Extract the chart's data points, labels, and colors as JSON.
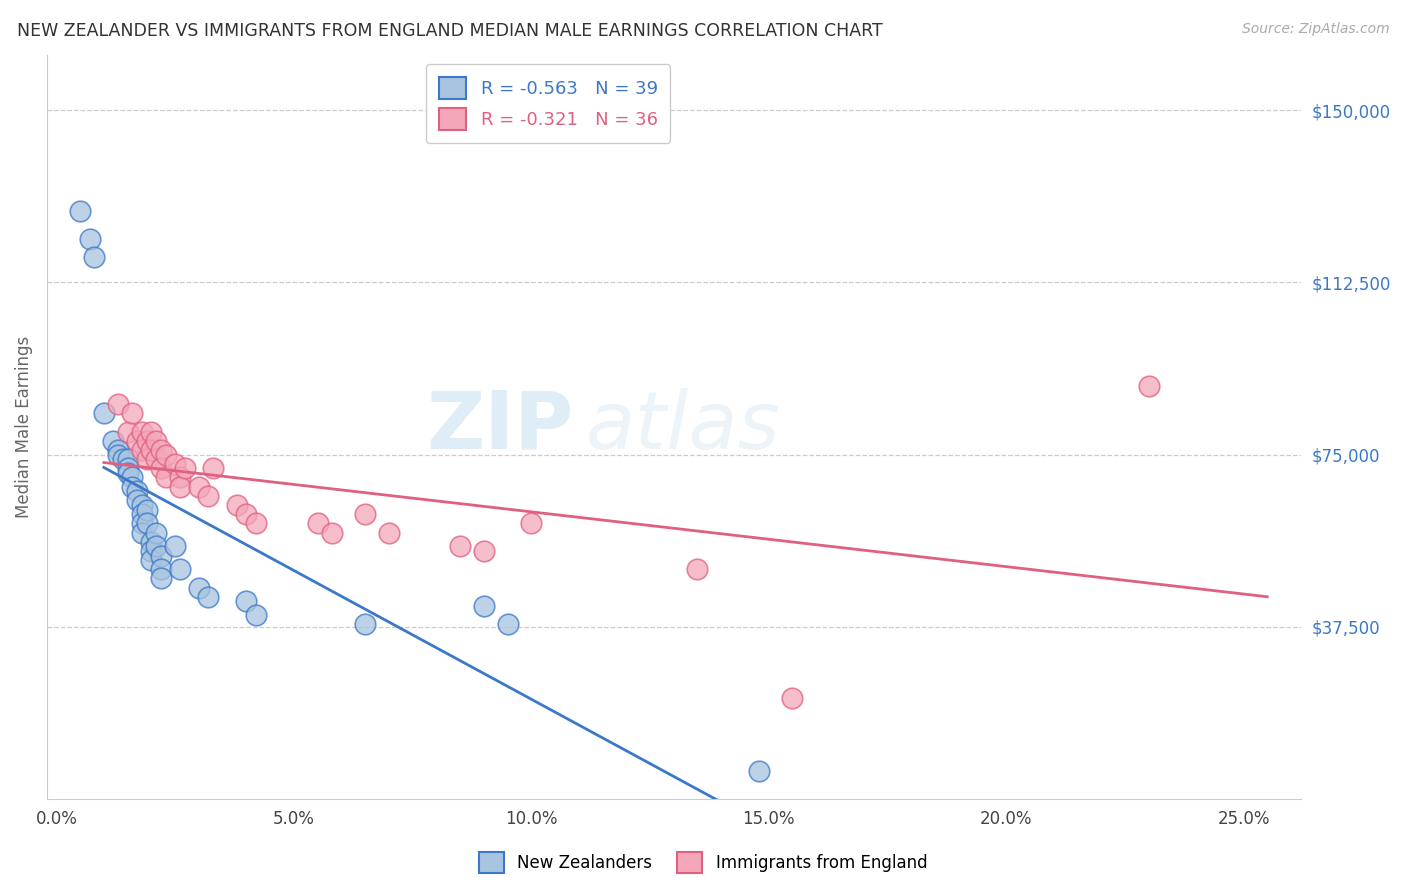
{
  "title": "NEW ZEALANDER VS IMMIGRANTS FROM ENGLAND MEDIAN MALE EARNINGS CORRELATION CHART",
  "source": "Source: ZipAtlas.com",
  "ylabel": "Median Male Earnings",
  "xlabel_ticks": [
    "0.0%",
    "5.0%",
    "10.0%",
    "15.0%",
    "20.0%",
    "25.0%"
  ],
  "xlabel_vals": [
    0.0,
    0.05,
    0.1,
    0.15,
    0.2,
    0.25
  ],
  "ytick_labels": [
    "$37,500",
    "$75,000",
    "$112,500",
    "$150,000"
  ],
  "ytick_vals": [
    37500,
    75000,
    112500,
    150000
  ],
  "ylim": [
    0,
    162000
  ],
  "xlim": [
    -0.002,
    0.262
  ],
  "blue_R": -0.563,
  "blue_N": 39,
  "pink_R": -0.321,
  "pink_N": 36,
  "blue_color": "#a8c4e0",
  "pink_color": "#f4a7b9",
  "blue_line_color": "#3c78c8",
  "pink_line_color": "#e06080",
  "legend_label_blue": "New Zealanders",
  "legend_label_pink": "Immigrants from England",
  "watermark_zip": "ZIP",
  "watermark_atlas": "atlas",
  "blue_x": [
    0.005,
    0.007,
    0.008,
    0.01,
    0.012,
    0.013,
    0.013,
    0.014,
    0.015,
    0.015,
    0.015,
    0.016,
    0.016,
    0.017,
    0.017,
    0.018,
    0.018,
    0.018,
    0.018,
    0.019,
    0.019,
    0.02,
    0.02,
    0.02,
    0.021,
    0.021,
    0.022,
    0.022,
    0.022,
    0.025,
    0.026,
    0.03,
    0.032,
    0.04,
    0.042,
    0.065,
    0.09,
    0.095,
    0.148
  ],
  "blue_y": [
    128000,
    122000,
    118000,
    84000,
    78000,
    76000,
    75000,
    74000,
    74000,
    72000,
    71000,
    70000,
    68000,
    67000,
    65000,
    64000,
    62000,
    60000,
    58000,
    63000,
    60000,
    56000,
    54000,
    52000,
    58000,
    55000,
    53000,
    50000,
    48000,
    55000,
    50000,
    46000,
    44000,
    43000,
    40000,
    38000,
    42000,
    38000,
    6000
  ],
  "pink_x": [
    0.013,
    0.015,
    0.016,
    0.017,
    0.018,
    0.018,
    0.019,
    0.019,
    0.02,
    0.02,
    0.021,
    0.021,
    0.022,
    0.022,
    0.023,
    0.023,
    0.025,
    0.026,
    0.026,
    0.027,
    0.03,
    0.032,
    0.033,
    0.038,
    0.04,
    0.042,
    0.055,
    0.058,
    0.065,
    0.07,
    0.085,
    0.09,
    0.1,
    0.135,
    0.155,
    0.23
  ],
  "pink_y": [
    86000,
    80000,
    84000,
    78000,
    80000,
    76000,
    78000,
    74000,
    80000,
    76000,
    78000,
    74000,
    76000,
    72000,
    75000,
    70000,
    73000,
    70000,
    68000,
    72000,
    68000,
    66000,
    72000,
    64000,
    62000,
    60000,
    60000,
    58000,
    62000,
    58000,
    55000,
    54000,
    60000,
    50000,
    22000,
    90000
  ]
}
